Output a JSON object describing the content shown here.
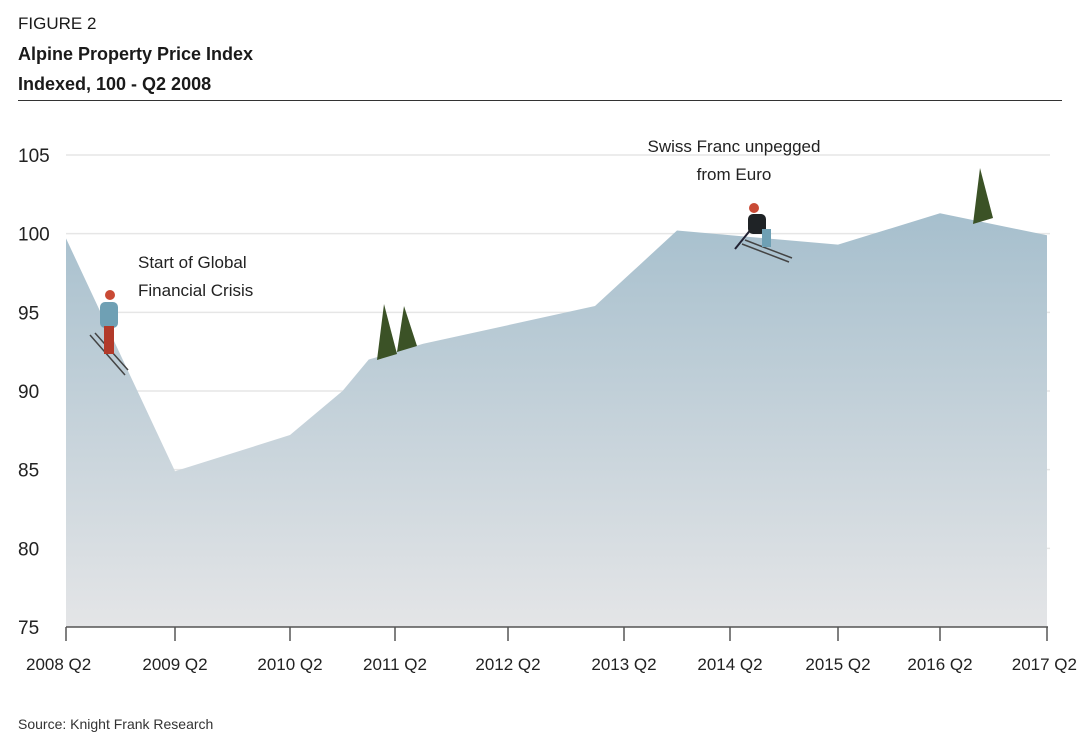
{
  "figure_label": "FIGURE 2",
  "source": "Source: Knight Frank Research",
  "chart_data": {
    "type": "area",
    "title": "Alpine Property Price Index",
    "subtitle": "Indexed, 100 - Q2 2008",
    "xlabel": "",
    "ylabel": "",
    "ylim": [
      75,
      105
    ],
    "yticks": [
      75,
      80,
      85,
      90,
      95,
      100,
      105
    ],
    "xticks": [
      "2008 Q2",
      "2009 Q2",
      "2010 Q2",
      "2011 Q2",
      "2012 Q2",
      "2013 Q2",
      "2014 Q2",
      "2015 Q2",
      "2016 Q2",
      "2017 Q2"
    ],
    "grid": true,
    "series": [
      {
        "name": "Alpine Property Price Index",
        "points": [
          {
            "x": "2008 Q2",
            "y": 99.7
          },
          {
            "x": "2009 Q2",
            "y": 84.9
          },
          {
            "x": "2010 Q2",
            "y": 87.2
          },
          {
            "x": "2010 Q4",
            "y": 90.0
          },
          {
            "x": "2011 Q1",
            "y": 92.0
          },
          {
            "x": "2011 Q3",
            "y": 93.0
          },
          {
            "x": "2013 Q1",
            "y": 95.4
          },
          {
            "x": "2013 Q4",
            "y": 100.2
          },
          {
            "x": "2015 Q2",
            "y": 99.3
          },
          {
            "x": "2016 Q2",
            "y": 101.3
          },
          {
            "x": "2017 Q2",
            "y": 99.9
          }
        ]
      }
    ],
    "annotations": [
      {
        "lines": [
          "Start of Global",
          "Financial Crisis"
        ],
        "x": "2008 Q4"
      },
      {
        "lines": [
          "Swiss Franc unpegged",
          "from Euro"
        ],
        "x": "2014 Q2"
      }
    ],
    "colors": {
      "fill_top": "#a6bfcd",
      "fill_bottom": "#e4e5e7",
      "tree": "#3b5226",
      "grid": "#e6e6e6"
    }
  }
}
